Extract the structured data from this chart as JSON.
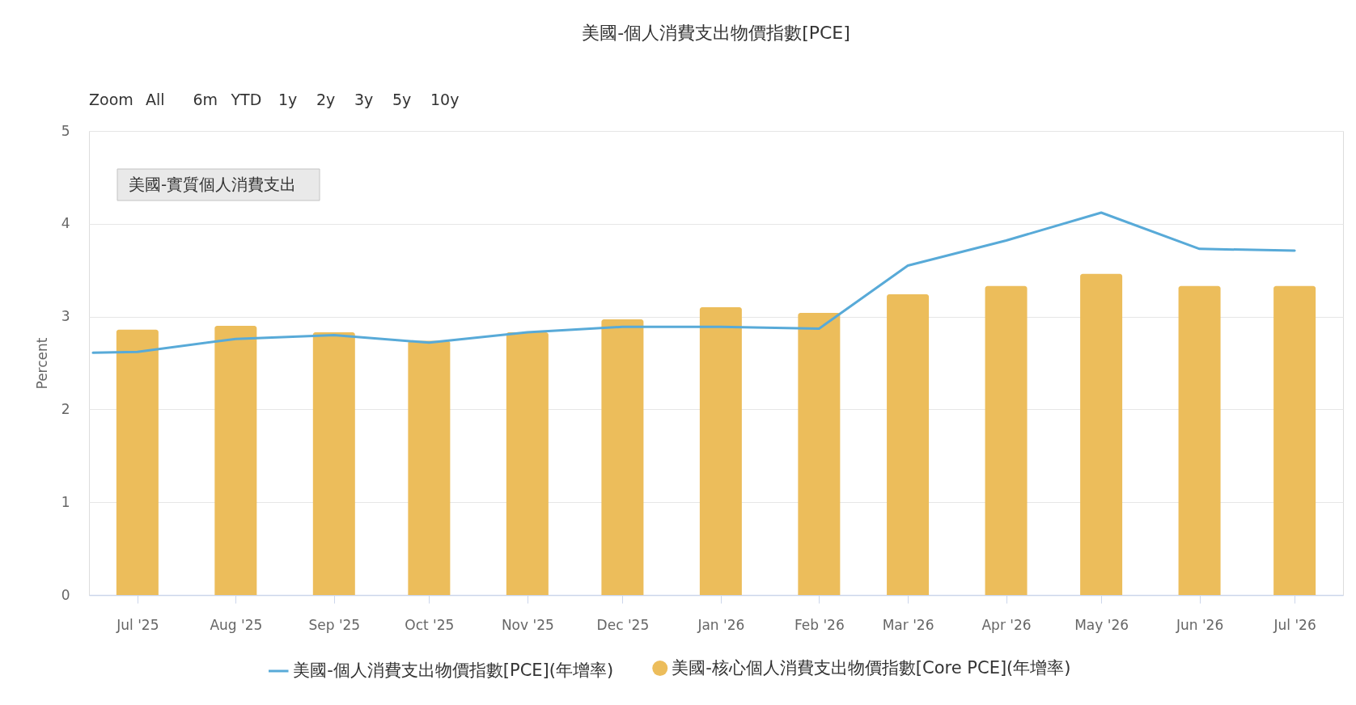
{
  "chart_data": {
    "type": "bar",
    "title": "美國-個人消費支出物價指數[PCE]",
    "ylabel": "Percent",
    "x": [
      "2025-07",
      "2025-08",
      "2025-09",
      "2025-10",
      "2025-11",
      "2025-12",
      "2026-01",
      "2026-02",
      "2026-03",
      "2026-04",
      "2026-05",
      "2026-06",
      "2026-07"
    ],
    "series": [
      {
        "name": "美國-個人消費支出物價指數[PCE](年增率)",
        "type": "line",
        "color": "#58aad8",
        "x": [
          "2025-06-17",
          "2025-07",
          "2025-08",
          "2025-09",
          "2025-10",
          "2025-11",
          "2025-12",
          "2026-01",
          "2026-02",
          "2026-03",
          "2026-04",
          "2026-05",
          "2026-06",
          "2026-07"
        ],
        "values": [
          2.61,
          2.62,
          2.76,
          2.8,
          2.72,
          2.83,
          2.89,
          2.89,
          2.87,
          3.55,
          3.82,
          4.12,
          3.73,
          3.71
        ]
      },
      {
        "name": "美國-核心個人消費支出物價指數[Core PCE](年增率)",
        "color": "#ecbd5b",
        "values": [
          2.86,
          2.9,
          2.83,
          2.74,
          2.83,
          2.97,
          3.1,
          3.04,
          3.24,
          3.33,
          3.46,
          3.33,
          3.33
        ]
      }
    ],
    "xlim": [
      "2025-06-17",
      "2026-07-15"
    ],
    "xticks": [
      {
        "value": "2025-07",
        "label": "Jul '25"
      },
      {
        "value": "2025-08",
        "label": "Aug '25"
      },
      {
        "value": "2025-09",
        "label": "Sep '25"
      },
      {
        "value": "2025-10",
        "label": "Oct '25"
      },
      {
        "value": "2025-11",
        "label": "Nov '25"
      },
      {
        "value": "2025-12",
        "label": "Dec '25"
      },
      {
        "value": "2026-01",
        "label": "Jan '26"
      },
      {
        "value": "2026-02",
        "label": "Feb '26"
      },
      {
        "value": "2026-03",
        "label": "Mar '26"
      },
      {
        "value": "2026-04",
        "label": "Apr '26"
      },
      {
        "value": "2026-05",
        "label": "May '26"
      },
      {
        "value": "2026-06",
        "label": "Jun '26"
      },
      {
        "value": "2026-07",
        "label": "Jul '26"
      }
    ],
    "ylim": [
      0,
      5
    ],
    "yticks": [
      0,
      1,
      2,
      3,
      4,
      5
    ],
    "grid": "y",
    "legend": "bottom",
    "annotations": [
      "Zoom",
      "All",
      "6m",
      "YTD",
      "1y",
      "2y",
      "3y",
      "5y",
      "10y",
      "美國-實質個人消費支出"
    ]
  }
}
